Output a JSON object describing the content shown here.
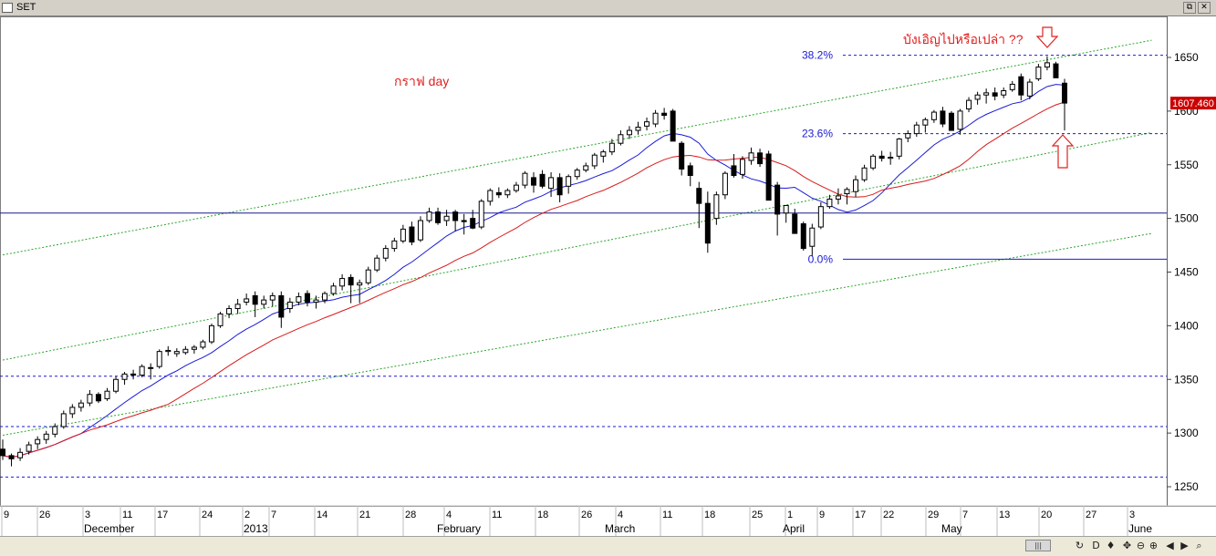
{
  "window": {
    "title": "SET",
    "restore_glyph": "⧉",
    "close_glyph": "✕"
  },
  "colors": {
    "up_candle": "#ffffff",
    "down_candle": "#000000",
    "sma_fast": "#1a1ad6",
    "sma_slow": "#d81a1a",
    "channel": "#2aa52a",
    "fib": "#1a1ad6",
    "annotation": "#e02020",
    "price_tag_bg": "#cc0000"
  },
  "annotations": {
    "chart_label": "กราฟ day",
    "question": "บังเอิญไปหรือเปล่า ??",
    "down_arrow": "down-arrow",
    "up_arrow": "up-arrow"
  },
  "chart_data": {
    "type": "candlestick",
    "title": "",
    "current_price_label": "1607.460",
    "y_axis": {
      "range": [
        1236,
        1672
      ],
      "ticks": [
        1250,
        1300,
        1350,
        1400,
        1450,
        1500,
        1550,
        1600,
        1650
      ]
    },
    "x_axis": {
      "date_ticks": [
        "9",
        "26",
        "3",
        "11",
        "17",
        "24",
        "2",
        "7",
        "14",
        "21",
        "28",
        "4",
        "11",
        "18",
        "26",
        "4",
        "11",
        "18",
        "25",
        "1",
        "9",
        "17",
        "22",
        "29",
        "7",
        "13",
        "20",
        "27",
        "3"
      ],
      "month_labels": [
        "December",
        "2013",
        "February",
        "March",
        "April",
        "May",
        "June"
      ]
    },
    "fibonacci": [
      {
        "label": "38.2%",
        "value": 1652
      },
      {
        "label": "23.6%",
        "value": 1579
      },
      {
        "label": "0.0%",
        "value": 1462
      }
    ],
    "horizontal_lines": [
      {
        "value": 1505,
        "style": "solid"
      },
      {
        "value": 1353,
        "style": "dotted"
      },
      {
        "value": 1306,
        "style": "dotted"
      },
      {
        "value": 1259,
        "style": "dotted"
      }
    ],
    "candles": [
      [
        1285,
        1294,
        1275,
        1279
      ],
      [
        1279,
        1281,
        1269,
        1276
      ],
      [
        1277,
        1286,
        1274,
        1282
      ],
      [
        1283,
        1292,
        1280,
        1289
      ],
      [
        1290,
        1297,
        1285,
        1294
      ],
      [
        1294,
        1302,
        1290,
        1299
      ],
      [
        1299,
        1309,
        1296,
        1306
      ],
      [
        1306,
        1321,
        1304,
        1318
      ],
      [
        1318,
        1327,
        1314,
        1324
      ],
      [
        1324,
        1331,
        1320,
        1328
      ],
      [
        1328,
        1340,
        1325,
        1336
      ],
      [
        1336,
        1338,
        1328,
        1330
      ],
      [
        1332,
        1342,
        1330,
        1339
      ],
      [
        1339,
        1353,
        1337,
        1350
      ],
      [
        1350,
        1357,
        1345,
        1355
      ],
      [
        1355,
        1359,
        1350,
        1354
      ],
      [
        1354,
        1364,
        1352,
        1362
      ],
      [
        1361,
        1365,
        1350,
        1361
      ],
      [
        1362,
        1378,
        1360,
        1376
      ],
      [
        1376,
        1381,
        1372,
        1377
      ],
      [
        1374,
        1379,
        1371,
        1376
      ],
      [
        1375,
        1381,
        1373,
        1378
      ],
      [
        1378,
        1382,
        1374,
        1380
      ],
      [
        1380,
        1387,
        1378,
        1385
      ],
      [
        1385,
        1402,
        1383,
        1400
      ],
      [
        1400,
        1413,
        1398,
        1411
      ],
      [
        1411,
        1419,
        1407,
        1416
      ],
      [
        1416,
        1425,
        1411,
        1420
      ],
      [
        1422,
        1430,
        1419,
        1425
      ],
      [
        1428,
        1432,
        1408,
        1420
      ],
      [
        1420,
        1428,
        1416,
        1424
      ],
      [
        1424,
        1431,
        1418,
        1428
      ],
      [
        1428,
        1432,
        1398,
        1408
      ],
      [
        1416,
        1426,
        1412,
        1422
      ],
      [
        1422,
        1431,
        1419,
        1427
      ],
      [
        1430,
        1433,
        1418,
        1422
      ],
      [
        1422,
        1428,
        1416,
        1424
      ],
      [
        1424,
        1432,
        1421,
        1430
      ],
      [
        1430,
        1440,
        1428,
        1437
      ],
      [
        1437,
        1448,
        1433,
        1444
      ],
      [
        1445,
        1448,
        1421,
        1438
      ],
      [
        1438,
        1443,
        1421,
        1440
      ],
      [
        1440,
        1455,
        1438,
        1452
      ],
      [
        1452,
        1466,
        1450,
        1463
      ],
      [
        1463,
        1475,
        1460,
        1472
      ],
      [
        1472,
        1482,
        1469,
        1479
      ],
      [
        1479,
        1494,
        1477,
        1490
      ],
      [
        1492,
        1497,
        1475,
        1478
      ],
      [
        1480,
        1502,
        1478,
        1498
      ],
      [
        1498,
        1510,
        1496,
        1506
      ],
      [
        1506,
        1510,
        1494,
        1496
      ],
      [
        1498,
        1508,
        1493,
        1502
      ],
      [
        1506,
        1508,
        1488,
        1498
      ],
      [
        1498,
        1504,
        1485,
        1497
      ],
      [
        1500,
        1508,
        1490,
        1491
      ],
      [
        1492,
        1518,
        1490,
        1516
      ],
      [
        1516,
        1528,
        1512,
        1526
      ],
      [
        1524,
        1529,
        1519,
        1522
      ],
      [
        1522,
        1528,
        1519,
        1526
      ],
      [
        1526,
        1534,
        1524,
        1531
      ],
      [
        1531,
        1544,
        1528,
        1542
      ],
      [
        1538,
        1543,
        1524,
        1531
      ],
      [
        1541,
        1545,
        1528,
        1530
      ],
      [
        1528,
        1543,
        1520,
        1538
      ],
      [
        1538,
        1542,
        1515,
        1522
      ],
      [
        1530,
        1541,
        1523,
        1539
      ],
      [
        1539,
        1547,
        1536,
        1545
      ],
      [
        1545,
        1552,
        1543,
        1549
      ],
      [
        1549,
        1561,
        1546,
        1559
      ],
      [
        1558,
        1564,
        1552,
        1562
      ],
      [
        1562,
        1574,
        1559,
        1570
      ],
      [
        1570,
        1582,
        1568,
        1578
      ],
      [
        1578,
        1586,
        1574,
        1582
      ],
      [
        1582,
        1590,
        1578,
        1585
      ],
      [
        1586,
        1594,
        1582,
        1590
      ],
      [
        1588,
        1601,
        1585,
        1598
      ],
      [
        1598,
        1603,
        1592,
        1596
      ],
      [
        1600,
        1602,
        1575,
        1572
      ],
      [
        1570,
        1572,
        1540,
        1546
      ],
      [
        1549,
        1552,
        1530,
        1540
      ],
      [
        1528,
        1534,
        1491,
        1514
      ],
      [
        1514,
        1525,
        1468,
        1477
      ],
      [
        1500,
        1525,
        1494,
        1522
      ],
      [
        1522,
        1544,
        1518,
        1542
      ],
      [
        1549,
        1560,
        1538,
        1540
      ],
      [
        1541,
        1558,
        1537,
        1555
      ],
      [
        1554,
        1566,
        1550,
        1561
      ],
      [
        1561,
        1565,
        1548,
        1551
      ],
      [
        1560,
        1563,
        1518,
        1517
      ],
      [
        1531,
        1534,
        1484,
        1504
      ],
      [
        1505,
        1508,
        1496,
        1512
      ],
      [
        1504,
        1509,
        1490,
        1486
      ],
      [
        1495,
        1497,
        1470,
        1472
      ],
      [
        1474,
        1495,
        1465,
        1491
      ],
      [
        1492,
        1515,
        1490,
        1511
      ],
      [
        1511,
        1522,
        1509,
        1518
      ],
      [
        1518,
        1528,
        1513,
        1521
      ],
      [
        1523,
        1529,
        1513,
        1527
      ],
      [
        1525,
        1540,
        1520,
        1536
      ],
      [
        1536,
        1550,
        1534,
        1547
      ],
      [
        1547,
        1560,
        1545,
        1558
      ],
      [
        1558,
        1563,
        1553,
        1556
      ],
      [
        1556,
        1562,
        1550,
        1557
      ],
      [
        1558,
        1575,
        1555,
        1574
      ],
      [
        1575,
        1582,
        1571,
        1579
      ],
      [
        1579,
        1590,
        1576,
        1587
      ],
      [
        1587,
        1594,
        1580,
        1592
      ],
      [
        1592,
        1601,
        1589,
        1599
      ],
      [
        1600,
        1604,
        1585,
        1588
      ],
      [
        1598,
        1600,
        1582,
        1582
      ],
      [
        1583,
        1602,
        1578,
        1600
      ],
      [
        1602,
        1613,
        1599,
        1610
      ],
      [
        1611,
        1618,
        1606,
        1615
      ],
      [
        1615,
        1621,
        1607,
        1617
      ],
      [
        1617,
        1622,
        1610,
        1614
      ],
      [
        1615,
        1622,
        1612,
        1619
      ],
      [
        1620,
        1628,
        1618,
        1625
      ],
      [
        1632,
        1635,
        1610,
        1615
      ],
      [
        1614,
        1630,
        1611,
        1627
      ],
      [
        1630,
        1644,
        1628,
        1641
      ],
      [
        1641,
        1651,
        1638,
        1645
      ],
      [
        1644,
        1646,
        1632,
        1631
      ],
      [
        1626,
        1630,
        1582,
        1607.46
      ]
    ]
  },
  "statusbar": {
    "scroll_glyph": "|||",
    "buttons": [
      "↻",
      "D",
      "♦",
      "✥",
      "⊖",
      "⊕",
      "◀",
      "▶",
      "⌕"
    ]
  }
}
